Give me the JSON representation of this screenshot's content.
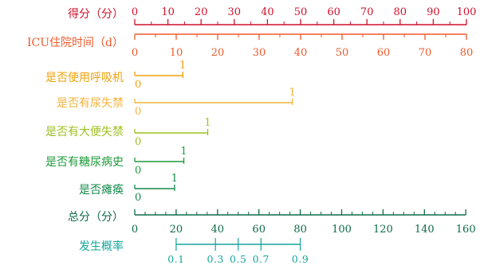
{
  "chart_data": {
    "type": "nomogram",
    "rows": [
      {
        "id": "points",
        "label": "得分（分）",
        "color": "#d0112b",
        "kind": "axis",
        "ticks_up": true,
        "ticks": [
          0,
          10,
          20,
          30,
          40,
          50,
          60,
          70,
          80,
          90,
          100
        ],
        "minor": [
          5,
          15,
          25,
          35,
          45,
          55,
          65,
          75,
          85,
          95
        ],
        "points_at": [
          0,
          10,
          20,
          30,
          40,
          50,
          60,
          70,
          80,
          90,
          100
        ]
      },
      {
        "id": "icu_days",
        "label": "ICU住院时间（d）",
        "color": "#ee5a2c",
        "kind": "axis",
        "ticks_up": false,
        "ticks": [
          0,
          10,
          20,
          30,
          40,
          50,
          60,
          70,
          80
        ],
        "minor": [
          5,
          15,
          25,
          35,
          45,
          55,
          65,
          75
        ],
        "points_per_unit": 1.25
      },
      {
        "id": "ventilator",
        "label": "是否使用呼吸机",
        "color": "#f0a20a",
        "kind": "binary",
        "levels": [
          "0",
          "1"
        ],
        "points": [
          0,
          14.5
        ]
      },
      {
        "id": "incontinence",
        "label": "是否有尿失禁",
        "color": "#f3b23a",
        "kind": "binary",
        "levels": [
          "0",
          "1"
        ],
        "points": [
          0,
          47.5
        ]
      },
      {
        "id": "fecal",
        "label": "是否有大便失禁",
        "color": "#9cc21c",
        "kind": "binary",
        "levels": [
          "0",
          "1"
        ],
        "points": [
          0,
          22
        ]
      },
      {
        "id": "diabetes",
        "label": "是否有糖尿病史",
        "color": "#1e9a3a",
        "kind": "binary",
        "levels": [
          "0",
          "1"
        ],
        "points": [
          0,
          14.8
        ]
      },
      {
        "id": "paralysis",
        "label": "是否瘫痪",
        "color": "#138a4a",
        "kind": "binary",
        "levels": [
          "0",
          "1"
        ],
        "points": [
          0,
          12
        ]
      },
      {
        "id": "total",
        "label": "总分（分）",
        "color": "#0e6b48",
        "kind": "axis",
        "ticks_up": true,
        "ticks": [
          0,
          20,
          40,
          60,
          80,
          100,
          120,
          140,
          160
        ],
        "minor": [
          5,
          10,
          15,
          25,
          30,
          35,
          45,
          50,
          55,
          65,
          70,
          75,
          85,
          90,
          95,
          105,
          110,
          115,
          125,
          130,
          135,
          145,
          150,
          155
        ],
        "total_points_range": [
          0,
          160
        ]
      },
      {
        "id": "probability",
        "label": "发生概率",
        "color": "#14a69a",
        "kind": "probability",
        "ticks": [
          {
            "label": "0.1",
            "total": 20
          },
          {
            "label": "0.3",
            "total": 39
          },
          {
            "label": "0.5",
            "total": 50
          },
          {
            "label": "0.7",
            "total": 61
          },
          {
            "label": "0.9",
            "total": 80
          }
        ]
      }
    ]
  }
}
